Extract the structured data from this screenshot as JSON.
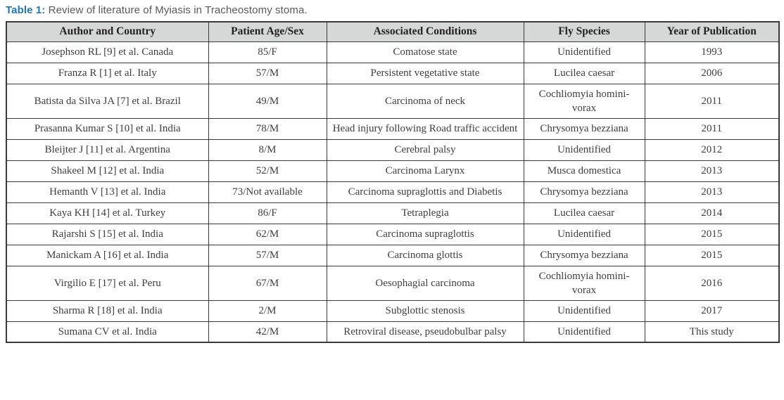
{
  "caption": {
    "label": "Table 1:",
    "text": " Review of literature of Myiasis in Tracheostomy stoma."
  },
  "colors": {
    "caption_accent": "#1f76bc",
    "caption_text": "#58595b",
    "header_bg": "#d6d8d7",
    "border": "#3a3a3a",
    "cell_text": "#3e3e40"
  },
  "table": {
    "columns": [
      "Author and Country",
      "Patient Age/Sex",
      "Associated Conditions",
      "Fly Species",
      "Year of Publication"
    ],
    "rows": [
      [
        "Josephson RL [9] et al. Canada",
        "85/F",
        "Comatose state",
        "Unidentified",
        "1993"
      ],
      [
        "Franza R [1] et al. Italy",
        "57/M",
        "Persistent vegetative state",
        "Lucilea caesar",
        "2006"
      ],
      [
        "Batista da Silva JA [7] et al. Brazil",
        "49/M",
        "Carcinoma of neck",
        "Cochliomyia homini-vorax",
        "2011"
      ],
      [
        "Prasanna Kumar S [10] et al. India",
        "78/M",
        "Head injury following Road traffic accident",
        "Chrysomya bezziana",
        "2011"
      ],
      [
        "Bleijter J [11] et al. Argentina",
        "8/M",
        "Cerebral palsy",
        "Unidentified",
        "2012"
      ],
      [
        "Shakeel M [12] et al. India",
        "52/M",
        "Carcinoma Larynx",
        "Musca domestica",
        "2013"
      ],
      [
        "Hemanth V [13] et al. India",
        "73/Not available",
        "Carcinoma supraglottis and Diabetis",
        "Chrysomya bezziana",
        "2013"
      ],
      [
        "Kaya KH [14] et al. Turkey",
        "86/F",
        "Tetraplegia",
        "Lucilea caesar",
        "2014"
      ],
      [
        "Rajarshi S [15] et al. India",
        "62/M",
        "Carcinoma supraglottis",
        "Unidentified",
        "2015"
      ],
      [
        "Manickam A [16] et al. India",
        "57/M",
        "Carcinoma glottis",
        "Chrysomya bezziana",
        "2015"
      ],
      [
        "Virgilio E [17] et al. Peru",
        "67/M",
        "Oesophagial carcinoma",
        "Cochliomyia homini-vorax",
        "2016"
      ],
      [
        "Sharma R [18] et al. India",
        "2/M",
        "Subglottic stenosis",
        "Unidentified",
        "2017"
      ],
      [
        "Sumana CV et al. India",
        "42/M",
        "Retroviral disease, pseudobulbar palsy",
        "Unidentified",
        "This study"
      ]
    ]
  }
}
